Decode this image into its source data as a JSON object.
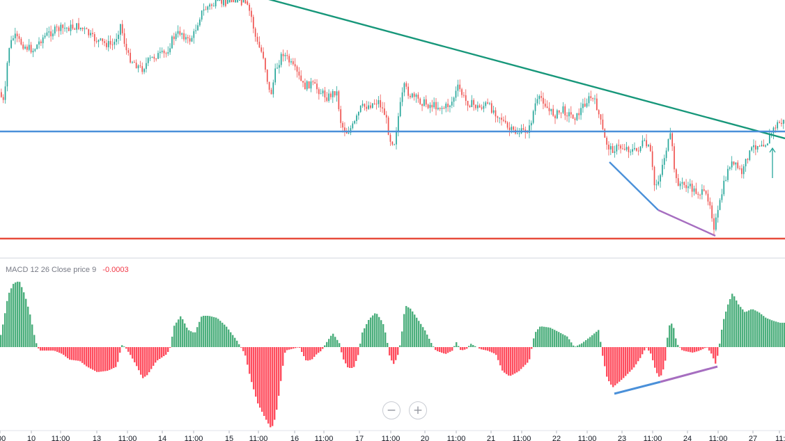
{
  "chart_data": {
    "type": "candlestick",
    "x_axis": {
      "tick_labels": [
        "00",
        "10",
        "11:00",
        "13",
        "11:00",
        "14",
        "11:00",
        "15",
        "11:00",
        "16",
        "11:00",
        "17",
        "11:00",
        "20",
        "11:00",
        "21",
        "11:00",
        "22",
        "11:00",
        "23",
        "11:00",
        "24",
        "11:00",
        "27",
        "11:"
      ]
    },
    "macd_legend": {
      "label": "MACD 12 26 Close price 9",
      "value": "-0.0003"
    },
    "colors": {
      "up": "#26a69a",
      "down": "#ef5350",
      "hist_up": "#4caf7d",
      "hist_down": "#ff4d5e",
      "trendline": "#17977a",
      "support_line": "#4a90d9",
      "lower_line": "#e74c3c",
      "divergence_blue": "#4a90d9",
      "divergence_purple": "#a66ec0"
    },
    "annotations": {
      "arrow": "up-arrow"
    }
  },
  "controls": {
    "zoom_out": "−",
    "zoom_in": "+"
  }
}
